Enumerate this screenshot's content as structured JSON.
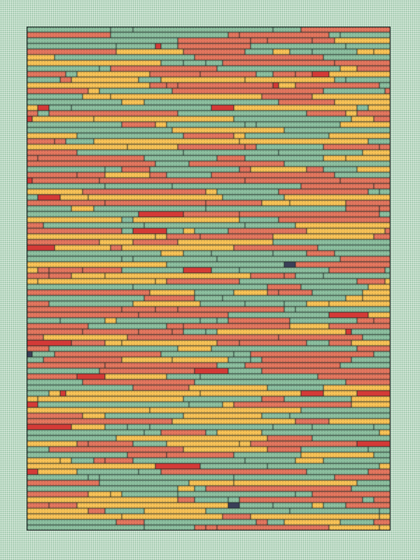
{
  "palette": {
    "background": "#d9eadc",
    "background_dots": "#8fbf9f",
    "green": "#8cbf9f",
    "salmon": "#e4765e",
    "yellow": "#f8c256",
    "red": "#d43a37",
    "navy": "#3a3f58",
    "outline": "#1f2826",
    "stipple": "#1f2826"
  },
  "artwork": {
    "subject": "abstract-horizontal-striped-pixel-pattern",
    "seed": 7391,
    "rows": 90,
    "cols": 65,
    "color_weights": {
      "green": 0.36,
      "salmon": 0.36,
      "yellow": 0.23,
      "red": 0.04,
      "navy": 0.01
    }
  }
}
